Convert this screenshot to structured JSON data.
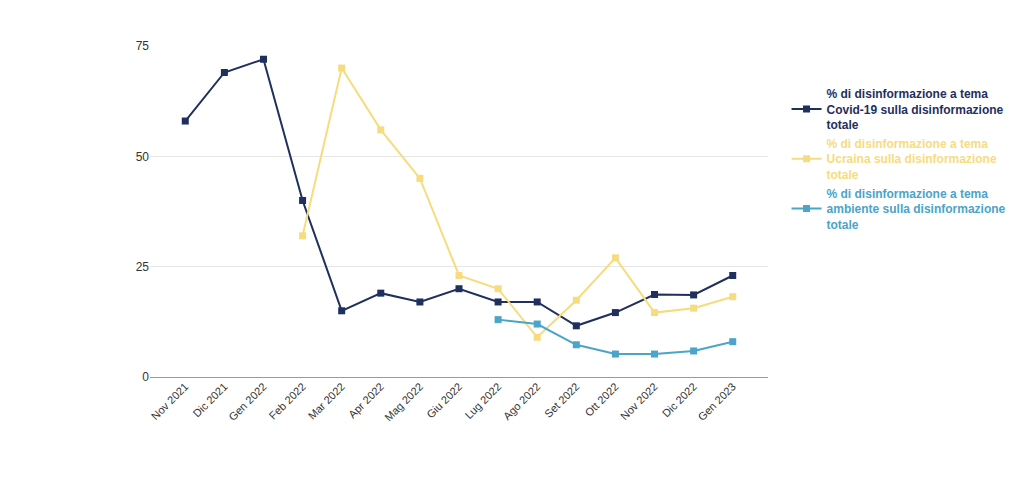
{
  "chart_data": {
    "type": "line",
    "categories": [
      "Nov 2021",
      "Dic 2021",
      "Gen 2022",
      "Feb 2022",
      "Mar 2022",
      "Apr 2022",
      "Mag 2022",
      "Giu 2022",
      "Lug 2022",
      "Ago 2022",
      "Set 2022",
      "Ott 2022",
      "Nov 2022",
      "Dic 2022",
      "Gen 2023"
    ],
    "series": [
      {
        "name": "% di disinformazione a tema Covid-19 sulla disinformazione totale",
        "color": "#1f2f5e",
        "values": [
          58,
          69,
          72,
          40,
          15,
          19,
          17,
          20,
          17,
          17,
          11.6,
          14.6,
          18.7,
          18.6,
          23
        ]
      },
      {
        "name": "% di disinformazione a tema Ucraina sulla disinformazione totale",
        "color": "#f6dc7e",
        "values": [
          null,
          null,
          null,
          32,
          70,
          56,
          45,
          23,
          20,
          9,
          17.4,
          27,
          14.6,
          15.6,
          18.2
        ]
      },
      {
        "name": "% di disinformazione a tema ambiente sulla disinformazione totale",
        "color": "#4ba4c9",
        "values": [
          null,
          null,
          null,
          null,
          null,
          null,
          null,
          null,
          13,
          12,
          7.3,
          5.2,
          5.2,
          5.9,
          8
        ]
      }
    ],
    "ylim": [
      0,
      75
    ],
    "yticks": [
      0,
      25,
      50,
      75
    ],
    "grid": true,
    "legend": "right",
    "marker": "square",
    "line_style": "solid"
  }
}
